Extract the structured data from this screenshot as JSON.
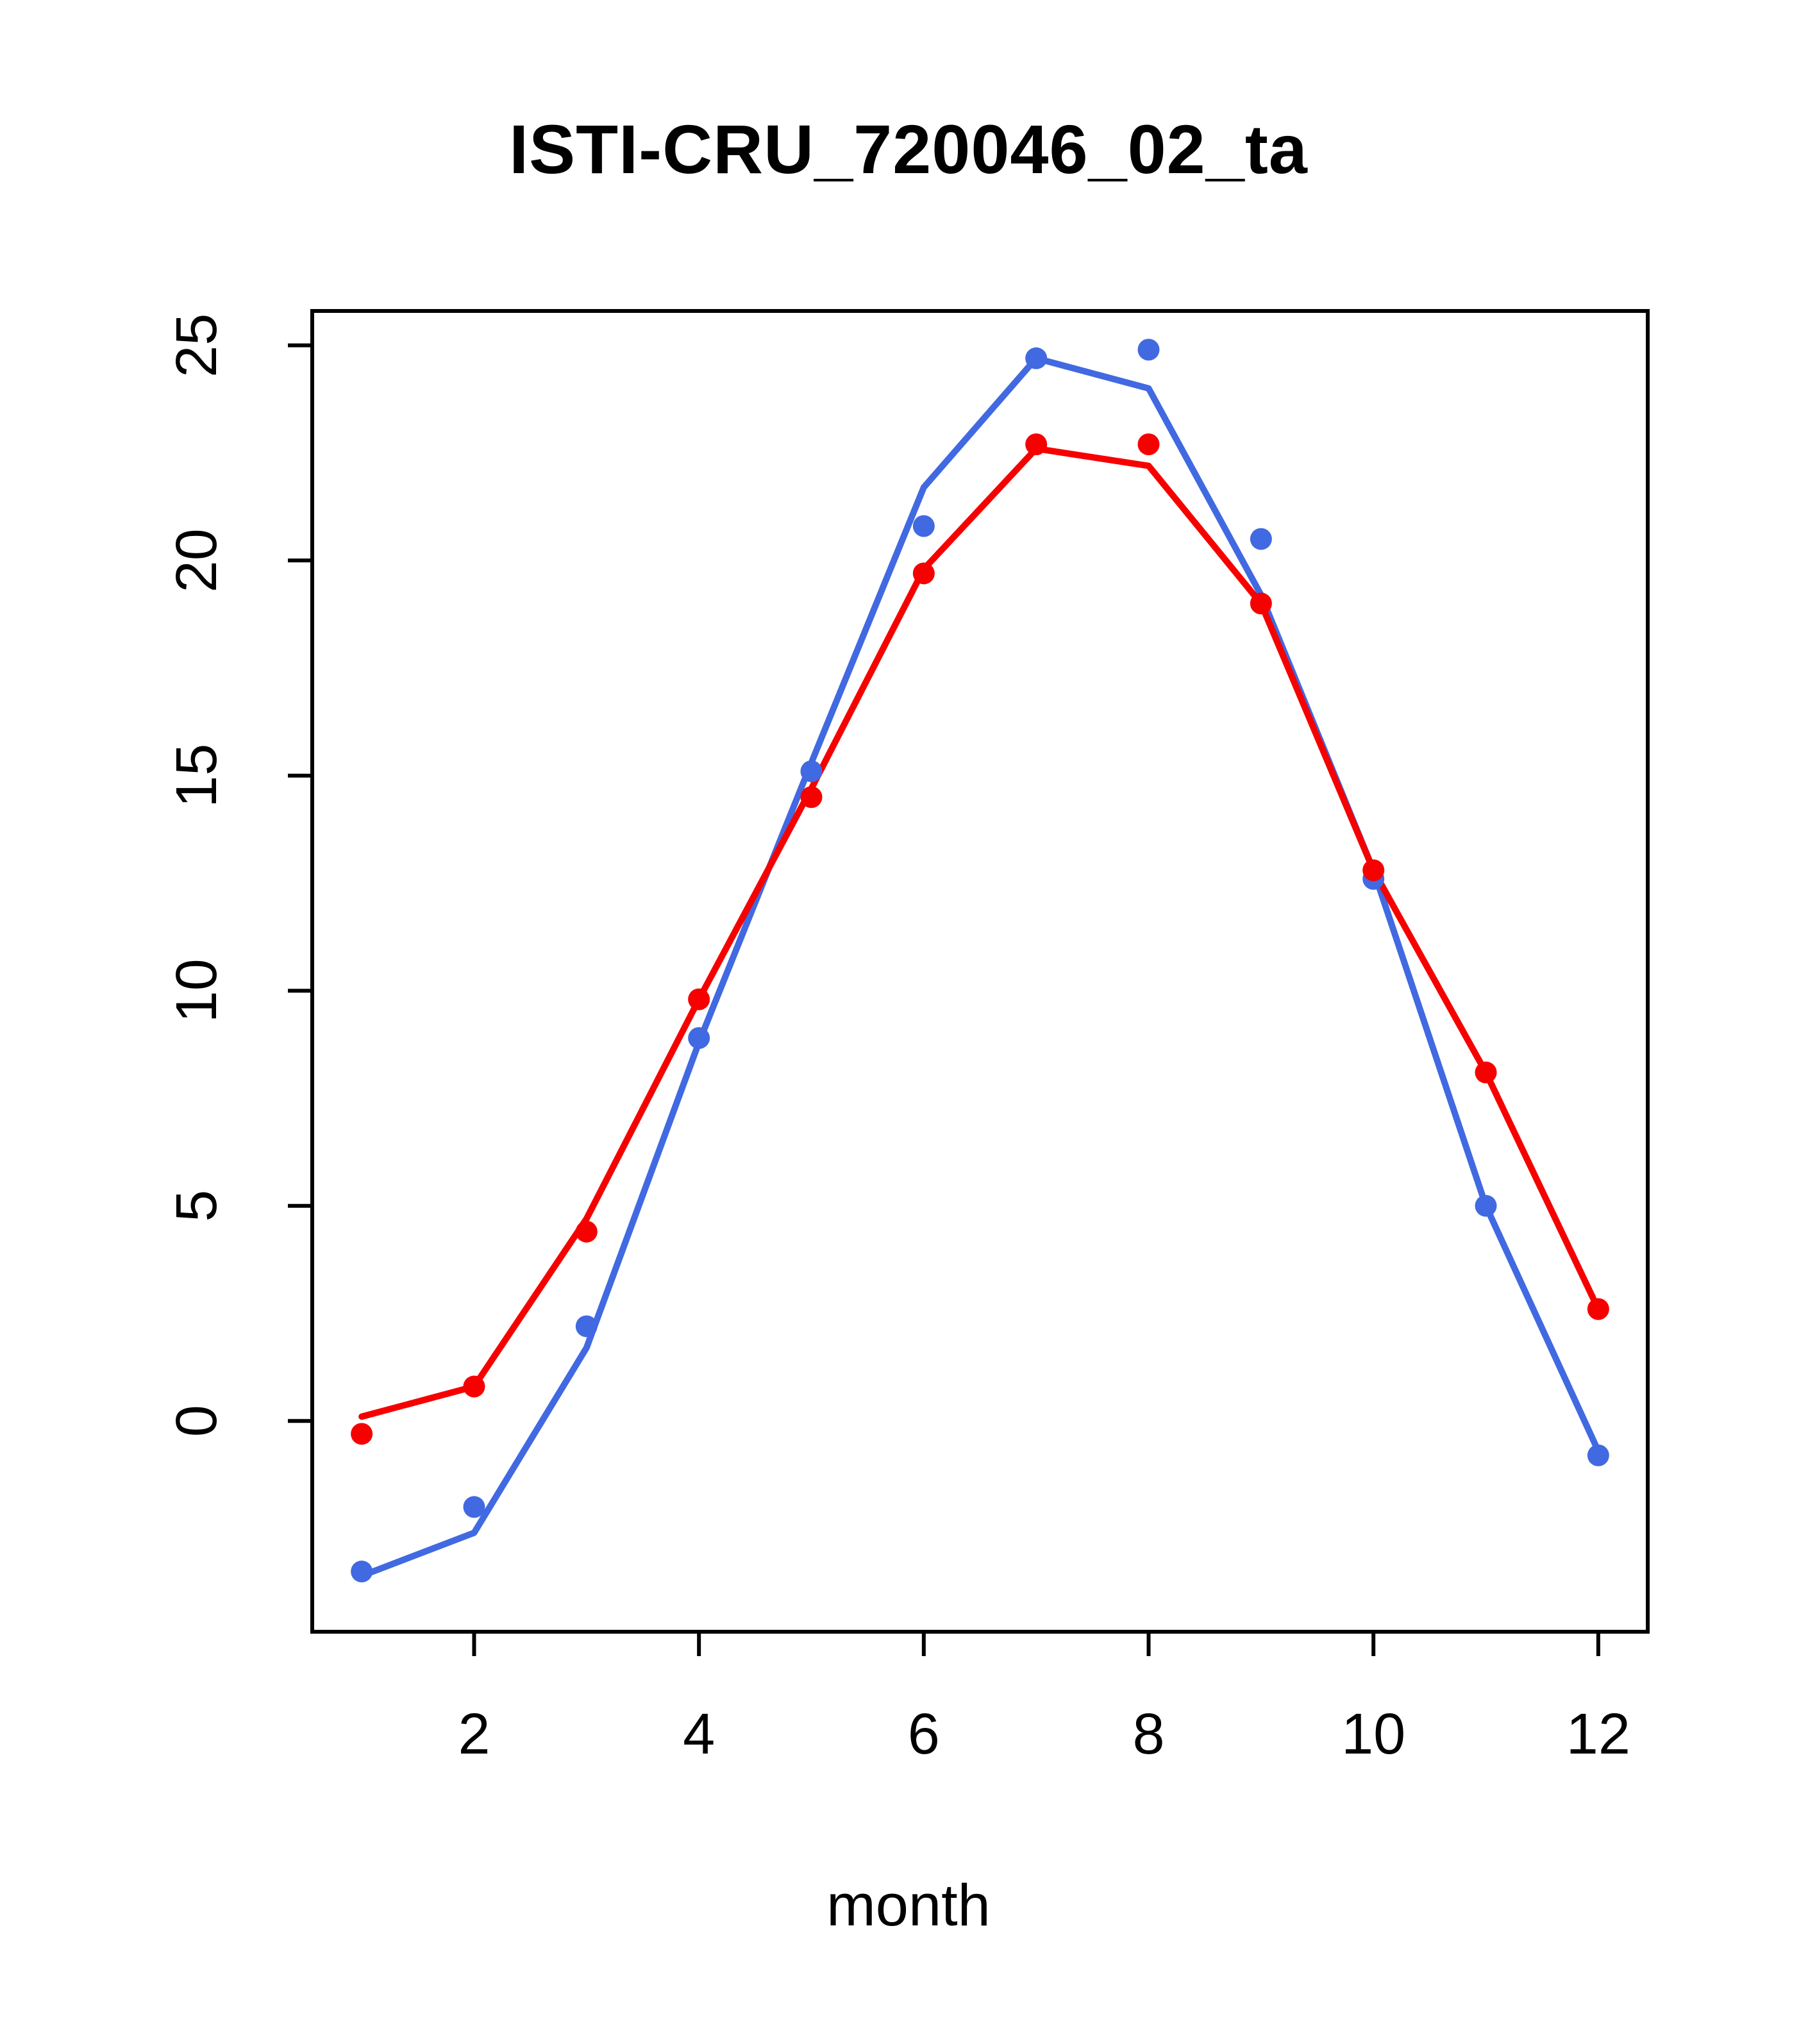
{
  "page": {
    "background_color": "#ffffff",
    "text_color": "#000000"
  },
  "chart_data": {
    "type": "line",
    "title": "ISTI-CRU_720046_02_ta",
    "xlabel": "month",
    "ylabel": "",
    "grid": false,
    "legend_position": "none",
    "x": [
      1,
      2,
      3,
      4,
      5,
      6,
      7,
      8,
      9,
      10,
      11,
      12
    ],
    "xlim": [
      0.56,
      12.44
    ],
    "ylim": [
      -4.9,
      25.8
    ],
    "xticks": [
      2,
      4,
      6,
      8,
      10,
      12
    ],
    "yticks": [
      0,
      5,
      10,
      15,
      20,
      25
    ],
    "colors": {
      "blue_series": "#4169E1",
      "red_series": "#F60000",
      "axis": "#000000"
    },
    "series": [
      {
        "name": "blue-line",
        "draw": "line",
        "color": "#4169E1",
        "values": [
          -3.6,
          -2.6,
          1.7,
          8.8,
          15.3,
          21.7,
          24.7,
          24.0,
          19.2,
          12.8,
          5.0,
          -0.7
        ]
      },
      {
        "name": "red-line",
        "draw": "line",
        "color": "#F60000",
        "values": [
          0.1,
          0.8,
          4.7,
          9.8,
          14.7,
          19.8,
          22.6,
          22.2,
          19.0,
          12.8,
          8.1,
          2.6
        ]
      },
      {
        "name": "blue-points",
        "draw": "points",
        "color": "#4169E1",
        "values": [
          -3.5,
          -2.0,
          2.2,
          8.9,
          15.1,
          20.8,
          24.7,
          24.9,
          20.5,
          12.6,
          5.0,
          -0.8
        ]
      },
      {
        "name": "red-points",
        "draw": "points",
        "color": "#F60000",
        "values": [
          -0.3,
          0.8,
          4.4,
          9.8,
          14.5,
          19.7,
          22.7,
          22.7,
          19.0,
          12.8,
          8.1,
          2.6
        ]
      }
    ]
  }
}
